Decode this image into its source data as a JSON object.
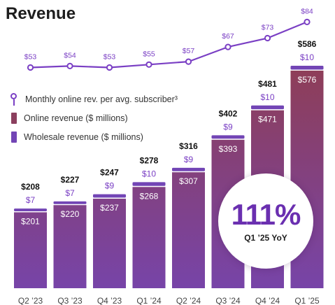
{
  "title": "Revenue",
  "legend": {
    "line": "Monthly online rev. per avg. subscriber³",
    "online": "Online revenue ($ millions)",
    "wholesale": "Wholesale revenue ($ millions)"
  },
  "callout": {
    "value": "111%",
    "label": "Q1 ’25 YoY"
  },
  "colors": {
    "online_top": "#8e3e58",
    "online_bottom": "#7744a8",
    "wholesale": "#7245b5",
    "line": "#7a3fc4",
    "total_label": "#111111",
    "wholesale_label": "#7a3fc4"
  },
  "chart_data": {
    "type": "bar",
    "stacked": true,
    "categories": [
      "Q2 ’23",
      "Q3 ’23",
      "Q4 ’23",
      "Q1 ’24",
      "Q2 ’24",
      "Q3 ’24",
      "Q4 ’24",
      "Q1 ’25"
    ],
    "series": [
      {
        "name": "Online revenue ($ millions)",
        "values": [
          201,
          220,
          237,
          268,
          307,
          393,
          471,
          576
        ]
      },
      {
        "name": "Wholesale revenue ($ millions)",
        "values": [
          7,
          7,
          9,
          10,
          9,
          9,
          10,
          10
        ]
      }
    ],
    "totals": [
      208,
      227,
      247,
      278,
      316,
      402,
      481,
      586
    ],
    "line_series": {
      "name": "Monthly online rev. per avg. subscriber³",
      "values": [
        53,
        54,
        53,
        55,
        57,
        67,
        73,
        84
      ]
    }
  }
}
